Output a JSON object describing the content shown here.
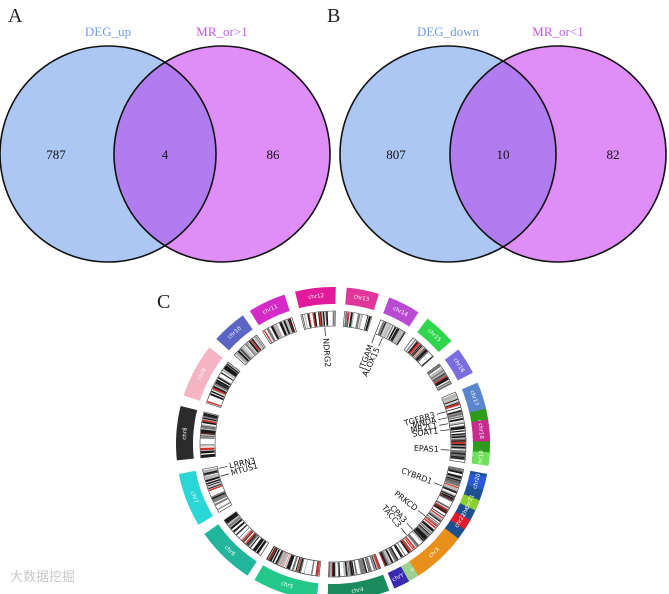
{
  "panel_a": {
    "letter": "A",
    "left_label": "DEG_up",
    "right_label": "MR_or>1",
    "left_only": "787",
    "overlap": "4",
    "right_only": "86"
  },
  "panel_b": {
    "letter": "B",
    "left_label": "DEG_down",
    "right_label": "MR_or<1",
    "left_only": "807",
    "overlap": "10",
    "right_only": "82"
  },
  "panel_c": {
    "letter": "C",
    "chromosomes": [
      {
        "name": "chr1",
        "color": "#2d9a1b"
      },
      {
        "name": "chr2",
        "color": "#1e4f8f"
      },
      {
        "name": "chr3",
        "color": "#9ed092"
      },
      {
        "name": "chr4",
        "color": "#1a8a5f"
      },
      {
        "name": "chr5",
        "color": "#23c88a"
      },
      {
        "name": "chr6",
        "color": "#21b59b"
      },
      {
        "name": "chr7",
        "color": "#2ad6d6"
      },
      {
        "name": "chr8",
        "color": "#2b2b2b"
      },
      {
        "name": "chr9",
        "color": "#f5b4c4"
      },
      {
        "name": "chr10",
        "color": "#5b66c4"
      },
      {
        "name": "chr11",
        "color": "#d42ac8"
      },
      {
        "name": "chr12",
        "color": "#e01a9a"
      },
      {
        "name": "chr13",
        "color": "#e0369a"
      },
      {
        "name": "chr14",
        "color": "#b94ad2"
      },
      {
        "name": "chr15",
        "color": "#2fd54a"
      },
      {
        "name": "chr16",
        "color": "#7b6de0"
      },
      {
        "name": "chr17",
        "color": "#5a86d0"
      },
      {
        "name": "chr18",
        "color": "#c82a8e"
      },
      {
        "name": "chr19",
        "color": "#6fe05a"
      },
      {
        "name": "chr20",
        "color": "#2a5ad8"
      },
      {
        "name": "chr21",
        "color": "#8ad02a"
      },
      {
        "name": "chr22",
        "color": "#e01a2a"
      },
      {
        "name": "chrX",
        "color": "#e8901a"
      },
      {
        "name": "chrY",
        "color": "#3a2ab0"
      }
    ],
    "genes": [
      "NDRG2",
      "ITGAM",
      "ALOX15",
      "TGFBR3",
      "MNDA",
      "MR2L1",
      "SOAT1",
      "EPAS1",
      "CYBRD1",
      "PRKCD",
      "CPA3",
      "TACC3",
      "MTUS1",
      "LRRN3"
    ]
  },
  "colors": {
    "venn_left": "#adc7f4",
    "venn_right": "#df8df7",
    "venn_overlap": "#b07cf0",
    "venn_label_left": "#6f9be2",
    "venn_label_right": "#c45ae4"
  },
  "watermark": "大数据挖掘"
}
